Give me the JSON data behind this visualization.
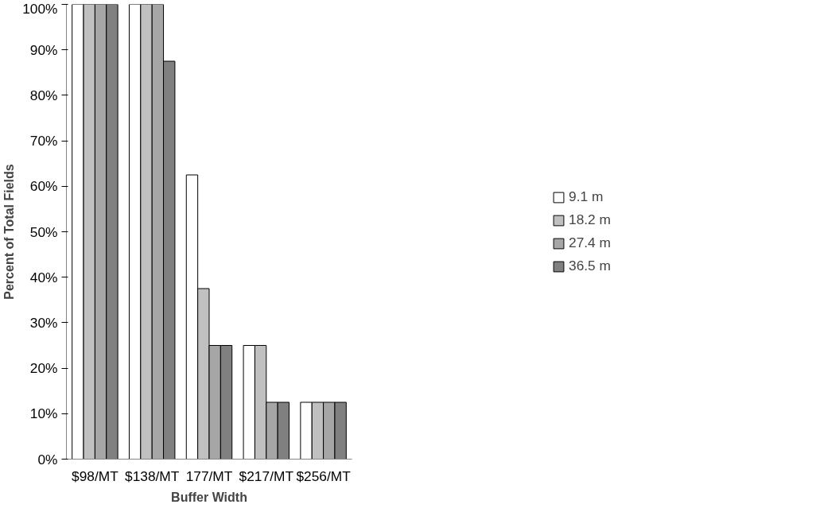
{
  "chart_data": {
    "type": "bar",
    "xlabel": "Buffer Width",
    "ylabel": "Percent of Total Fields",
    "categories": [
      "$98/MT",
      "$138/MT",
      "177/MT",
      "$217/MT",
      "$256/MT"
    ],
    "series": [
      {
        "name": "9.1 m",
        "color": "#ffffff",
        "values": [
          100,
          100,
          62.5,
          25,
          12.5
        ]
      },
      {
        "name": "18.2 m",
        "color": "#c0c0c0",
        "values": [
          100,
          100,
          37.5,
          25,
          12.5
        ]
      },
      {
        "name": "27.4 m",
        "color": "#a6a6a6",
        "values": [
          100,
          100,
          25,
          12.5,
          12.5
        ]
      },
      {
        "name": "36.5 m",
        "color": "#808080",
        "values": [
          100,
          87.5,
          25,
          12.5,
          12.5
        ]
      }
    ],
    "ylim": [
      0,
      100
    ],
    "yticks": [
      {
        "value": 0,
        "label": "0%"
      },
      {
        "value": 10,
        "label": "10%"
      },
      {
        "value": 20,
        "label": "20%"
      },
      {
        "value": 30,
        "label": "30%"
      },
      {
        "value": 40,
        "label": "40%"
      },
      {
        "value": 50,
        "label": "50%"
      },
      {
        "value": 60,
        "label": "60%"
      },
      {
        "value": 70,
        "label": "70%"
      },
      {
        "value": 80,
        "label": "80%"
      },
      {
        "value": 90,
        "label": "90%"
      },
      {
        "value": 100,
        "label": "100%"
      }
    ],
    "grid": false,
    "legend": "right"
  }
}
